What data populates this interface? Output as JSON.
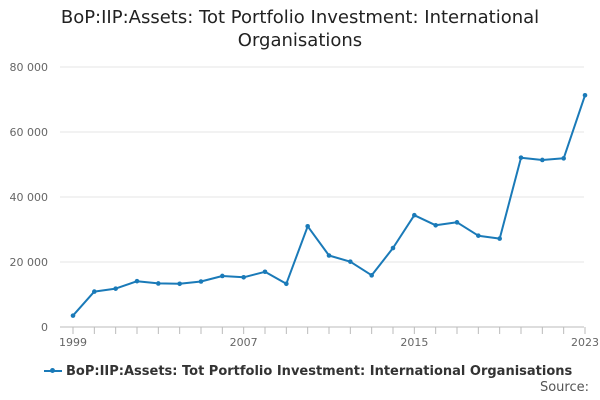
{
  "chart_data": {
    "type": "line",
    "title_lines": [
      "BoP:IIP:Assets: Tot Portfolio Investment: International",
      "Organisations"
    ],
    "xlabel": "",
    "ylabel": "",
    "x": [
      1999,
      2000,
      2001,
      2002,
      2003,
      2004,
      2005,
      2006,
      2007,
      2008,
      2009,
      2010,
      2011,
      2012,
      2013,
      2014,
      2015,
      2016,
      2017,
      2018,
      2019,
      2020,
      2021,
      2022,
      2023
    ],
    "x_tick_labels": [
      "1999",
      "2007",
      "2015",
      "2023"
    ],
    "y_tick_labels": [
      "0",
      "20 000",
      "40 000",
      "60 000",
      "80 000"
    ],
    "y_ticks": [
      0,
      20000,
      40000,
      60000,
      80000
    ],
    "ylim": [
      0,
      80000
    ],
    "xlim": [
      1999,
      2023
    ],
    "grid": true,
    "legend_position": "bottom",
    "series": [
      {
        "name": "BoP:IIP:Assets: Tot Portfolio Investment: International Organisations",
        "color": "#1a7ab8",
        "values": [
          3500,
          10900,
          11800,
          14100,
          13400,
          13300,
          14000,
          15700,
          15300,
          17000,
          13300,
          31000,
          22000,
          20100,
          15900,
          24300,
          34400,
          31300,
          32200,
          28100,
          27200,
          52100,
          51400,
          51900,
          71300
        ]
      }
    ]
  },
  "source_label": "Source:"
}
